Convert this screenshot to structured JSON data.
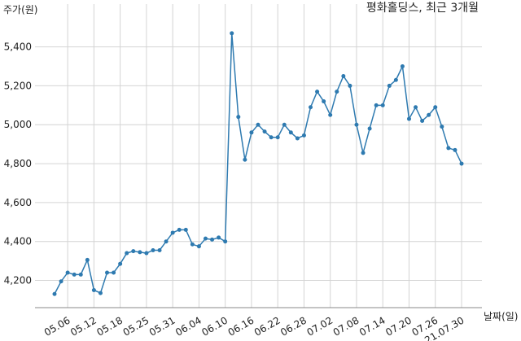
{
  "chart_data": {
    "type": "line",
    "title": "평화홀딩스, 최근 3개월",
    "y_label": "주가(원)",
    "x_label": "날짜(일)",
    "categories": [
      null,
      null,
      "05.06",
      null,
      null,
      null,
      "05.12",
      null,
      null,
      null,
      "05.18",
      null,
      null,
      null,
      "05.25",
      null,
      null,
      null,
      "05.31",
      null,
      null,
      null,
      "06.04",
      null,
      null,
      null,
      "06.10",
      null,
      null,
      null,
      "06.16",
      null,
      null,
      null,
      "06.22",
      null,
      null,
      null,
      "06.28",
      null,
      null,
      null,
      "07.02",
      null,
      null,
      null,
      "07.08",
      null,
      null,
      null,
      "07.14",
      null,
      null,
      null,
      "07.20",
      null,
      null,
      null,
      "07.26",
      null,
      null,
      null,
      "21.07.30"
    ],
    "series": [
      {
        "name": "평화홀딩스",
        "color": "#2e7ab0",
        "values": [
          4130,
          4195,
          4240,
          4230,
          4230,
          4305,
          4150,
          4135,
          4240,
          4240,
          4285,
          4340,
          4350,
          4345,
          4340,
          4355,
          4355,
          4400,
          4445,
          4460,
          4460,
          4385,
          4375,
          4415,
          4410,
          4420,
          4400,
          5470,
          5040,
          4820,
          4960,
          5000,
          4965,
          4935,
          4935,
          5000,
          4960,
          4930,
          4945,
          5090,
          5170,
          5120,
          5050,
          5170,
          5250,
          5200,
          5000,
          4855,
          4980,
          5100,
          5100,
          5200,
          5230,
          5300,
          5030,
          5090,
          5020,
          5050,
          5090,
          4990,
          4880,
          4870,
          4800
        ]
      }
    ],
    "ylim": [
      4060,
      5620
    ],
    "yticks": [
      {
        "value": 4200,
        "label": "4,200"
      },
      {
        "value": 4400,
        "label": "4,400"
      },
      {
        "value": 4600,
        "label": "4,600"
      },
      {
        "value": 4800,
        "label": "4,800"
      },
      {
        "value": 5000,
        "label": "5,000"
      },
      {
        "value": 5200,
        "label": "5,200"
      },
      {
        "value": 5400,
        "label": "5,400"
      }
    ],
    "grid": true
  }
}
